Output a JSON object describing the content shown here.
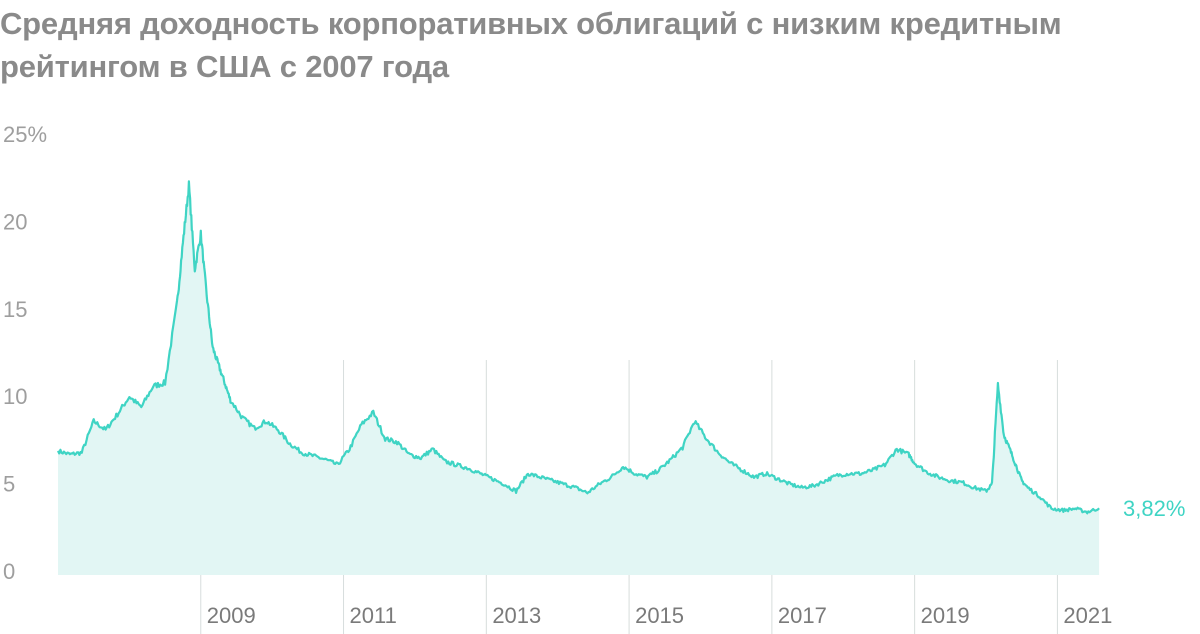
{
  "title": "Средняя доходность корпоративных облигаций с низким кредитным рейтингом в США с 2007 года",
  "colors": {
    "line": "#3fd4c4",
    "area": "#e2f6f4",
    "grid": "#d7dddc",
    "text": "#9e9e9e",
    "title": "#8a8a8a"
  },
  "chart_data": {
    "type": "area",
    "title": "Средняя доходность корпоративных облигаций с низким кредитным рейтингом в США с 2007 года",
    "xlabel": "",
    "ylabel": "",
    "ylim": [
      0,
      25
    ],
    "xlim": [
      "2007-01-01",
      "2021-09-01"
    ],
    "y_ticks": [
      "0",
      "5",
      "10",
      "15",
      "20",
      "25%"
    ],
    "x_ticks": [
      "2009",
      "2011",
      "2013",
      "2015",
      "2017",
      "2019",
      "2021"
    ],
    "end_label": "3,82%",
    "grid": "vertical lines at each labeled year",
    "x": [
      "2007-01",
      "2007-03",
      "2007-05",
      "2007-07",
      "2007-09",
      "2007-11",
      "2008-01",
      "2008-03",
      "2008-05",
      "2008-07",
      "2008-09",
      "2008-10",
      "2008-11",
      "2008-12",
      "2009-01",
      "2009-02",
      "2009-03",
      "2009-04",
      "2009-05",
      "2009-06",
      "2009-08",
      "2009-10",
      "2009-12",
      "2010-02",
      "2010-04",
      "2010-06",
      "2010-08",
      "2010-10",
      "2010-12",
      "2011-02",
      "2011-04",
      "2011-06",
      "2011-08",
      "2011-10",
      "2011-12",
      "2012-02",
      "2012-04",
      "2012-06",
      "2012-08",
      "2012-10",
      "2012-12",
      "2013-02",
      "2013-04",
      "2013-06",
      "2013-08",
      "2013-10",
      "2013-12",
      "2014-02",
      "2014-04",
      "2014-06",
      "2014-08",
      "2014-10",
      "2014-12",
      "2015-02",
      "2015-04",
      "2015-06",
      "2015-08",
      "2015-10",
      "2015-12",
      "2016-02",
      "2016-04",
      "2016-06",
      "2016-08",
      "2016-10",
      "2016-12",
      "2017-02",
      "2017-04",
      "2017-06",
      "2017-08",
      "2017-10",
      "2017-12",
      "2018-02",
      "2018-04",
      "2018-06",
      "2018-08",
      "2018-10",
      "2018-12",
      "2019-01",
      "2019-03",
      "2019-05",
      "2019-07",
      "2019-09",
      "2019-11",
      "2020-01",
      "2020-02",
      "2020-03",
      "2020-04",
      "2020-05",
      "2020-06",
      "2020-07",
      "2020-08",
      "2020-10",
      "2020-12",
      "2021-02",
      "2021-04",
      "2021-06",
      "2021-08"
    ],
    "values": [
      7.1,
      6.9,
      7.0,
      8.8,
      8.3,
      9.2,
      10.2,
      9.6,
      10.8,
      11.0,
      15.5,
      19.0,
      22.3,
      17.5,
      19.5,
      16.0,
      13.0,
      12.0,
      11.0,
      10.0,
      9.0,
      8.4,
      8.8,
      8.3,
      7.5,
      7.0,
      6.8,
      6.6,
      6.3,
      7.2,
      8.6,
      9.3,
      7.8,
      7.6,
      6.9,
      6.7,
      7.2,
      6.5,
      6.3,
      6.1,
      5.8,
      5.5,
      5.2,
      4.8,
      5.8,
      5.6,
      5.4,
      5.2,
      5.0,
      4.7,
      5.2,
      5.6,
      6.2,
      5.8,
      5.6,
      6.0,
      6.6,
      7.3,
      8.8,
      7.8,
      7.0,
      6.4,
      6.0,
      5.6,
      5.8,
      5.5,
      5.2,
      5.0,
      5.1,
      5.4,
      5.7,
      5.8,
      5.8,
      6.0,
      6.3,
      7.2,
      6.9,
      6.4,
      5.9,
      5.6,
      5.4,
      5.3,
      5.0,
      4.8,
      5.2,
      10.9,
      8.0,
      7.2,
      6.3,
      5.4,
      5.0,
      4.5,
      3.8,
      3.7,
      3.8,
      3.6,
      3.82
    ]
  }
}
